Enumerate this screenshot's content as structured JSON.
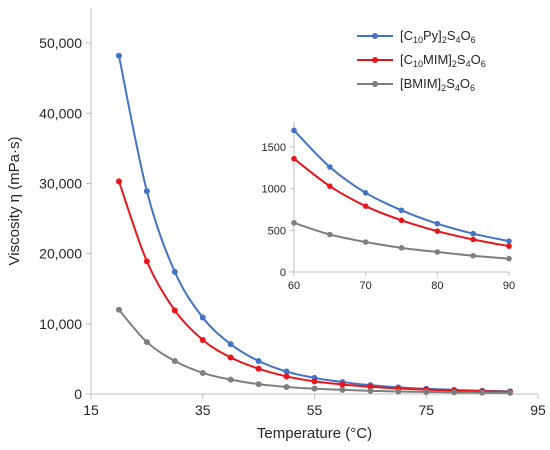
{
  "chart_data": {
    "type": "line",
    "xlabel": "Temperature (°C)",
    "ylabel": "Viscosity η (mPa·s)",
    "xlim": [
      15,
      95
    ],
    "ylim": [
      0,
      55000
    ],
    "x_ticks": [
      "15",
      "35",
      "55",
      "75",
      "95"
    ],
    "y_ticks": [
      "0",
      "10,000",
      "20,000",
      "30,000",
      "40,000",
      "50,000"
    ],
    "legend_position": "top-right",
    "grid": false,
    "x": [
      20,
      25,
      30,
      35,
      40,
      45,
      50,
      55,
      60,
      65,
      70,
      75,
      80,
      85,
      90
    ],
    "series": [
      {
        "legend": {
          "pre": "[C",
          "s1": "10",
          "mid": "Py]",
          "s2": "2",
          "s3": "S",
          "s4": "4",
          "s5": "O",
          "s6": "6"
        },
        "color": "#4472c4",
        "values": [
          48200,
          28900,
          17400,
          10900,
          7100,
          4700,
          3200,
          2300,
          1700,
          1260,
          950,
          740,
          580,
          460,
          370
        ]
      },
      {
        "legend": {
          "pre": "[C",
          "s1": "10",
          "mid": "MIM]",
          "s2": "2",
          "s3": "S",
          "s4": "4",
          "s5": "O",
          "s6": "6"
        },
        "color": "#e8151b",
        "values": [
          30300,
          18900,
          11900,
          7700,
          5200,
          3600,
          2500,
          1800,
          1360,
          1030,
          790,
          620,
          490,
          390,
          310
        ]
      },
      {
        "legend": {
          "pre": "[BMIM]",
          "s1": "",
          "mid": "",
          "s2": "2",
          "s3": "S",
          "s4": "4",
          "s5": "O",
          "s6": "6"
        },
        "color": "#7f7f7f",
        "values": [
          12000,
          7400,
          4700,
          3000,
          2050,
          1400,
          1000,
          760,
          590,
          450,
          360,
          290,
          240,
          195,
          160
        ]
      }
    ],
    "inset": {
      "xlim": [
        60,
        90
      ],
      "ylim": [
        0,
        1800
      ],
      "x_ticks": [
        "60",
        "70",
        "80",
        "90"
      ],
      "y_ticks": [
        "0",
        "500",
        "1000",
        "1500"
      ]
    }
  }
}
